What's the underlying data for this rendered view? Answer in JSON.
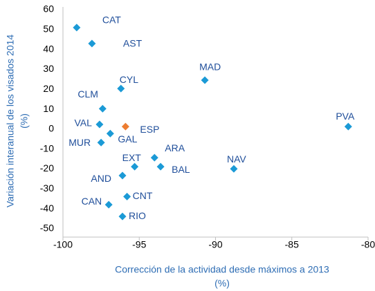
{
  "chart_data": {
    "type": "scatter",
    "x_label": [
      "Corrección de la actividad desde máximos a 2013",
      "(%)"
    ],
    "y_label": [
      "Variación interanual de los visados 2014",
      "(%)"
    ],
    "point_labels": [
      "CAT",
      "AST",
      "MAD",
      "CYL",
      "CLM",
      "VAL",
      "ESP",
      "GAL",
      "MUR",
      "PVA",
      "EXT",
      "ARA",
      "BAL",
      "NAV",
      "AND",
      "CNT",
      "CAN",
      "RIO"
    ],
    "x": [
      -99.1,
      -98.1,
      -90.7,
      -96.2,
      -97.4,
      -97.6,
      -95.9,
      -96.9,
      -97.5,
      -81.3,
      -95.3,
      -94.0,
      -93.6,
      -88.8,
      -96.1,
      -95.8,
      -97.0,
      -96.1
    ],
    "values": [
      51,
      43,
      24.6,
      20.4,
      10.3,
      2.4,
      1.3,
      -2.2,
      -6.7,
      1.3,
      -18.8,
      -14.3,
      -18.8,
      -19.9,
      -23.3,
      -33.8,
      -37.9,
      -43.8
    ],
    "colors": [
      "#1b9ad6",
      "#1b9ad6",
      "#1b9ad6",
      "#1b9ad6",
      "#1b9ad6",
      "#1b9ad6",
      "#ed7d31",
      "#1b9ad6",
      "#1b9ad6",
      "#1b9ad6",
      "#1b9ad6",
      "#1b9ad6",
      "#1b9ad6",
      "#1b9ad6",
      "#1b9ad6",
      "#1b9ad6",
      "#1b9ad6",
      "#1b9ad6"
    ],
    "xlim": [
      -100,
      -80
    ],
    "xticks": [
      -100,
      -95,
      -90,
      -85,
      -80
    ],
    "ylim": [
      -50,
      60
    ],
    "yticks": [
      -50,
      -40,
      -30,
      -20,
      -10,
      0,
      10,
      20,
      30,
      40,
      50,
      60
    ],
    "grid": false
  }
}
